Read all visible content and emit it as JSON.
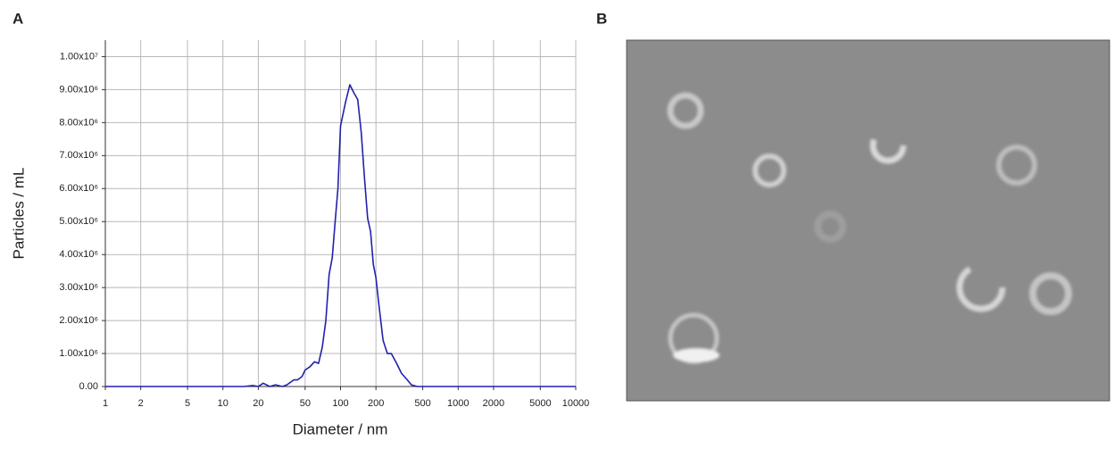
{
  "chart_data": {
    "type": "line",
    "panel_label": "A",
    "x_label": "Diameter / nm",
    "y_label": "Particles / mL",
    "xscale": "log",
    "grid": true,
    "xlim": [
      1,
      10000
    ],
    "xticks": [
      1,
      2,
      5,
      10,
      20,
      50,
      100,
      200,
      500,
      1000,
      2000,
      5000,
      10000
    ],
    "ylim": [
      0,
      10500000
    ],
    "yticks": [
      {
        "value": 0,
        "label": "0.00"
      },
      {
        "value": 1000000,
        "label": "1.00x10⁶"
      },
      {
        "value": 2000000,
        "label": "2.00x10⁶"
      },
      {
        "value": 3000000,
        "label": "3.00x10⁶"
      },
      {
        "value": 4000000,
        "label": "4.00x10⁶"
      },
      {
        "value": 5000000,
        "label": "5.00x10⁶"
      },
      {
        "value": 6000000,
        "label": "6.00x10⁶"
      },
      {
        "value": 7000000,
        "label": "7.00x10⁶"
      },
      {
        "value": 8000000,
        "label": "8.00x10⁶"
      },
      {
        "value": 9000000,
        "label": "9.00x10⁶"
      },
      {
        "value": 10000000,
        "label": "1.00x10⁷"
      }
    ],
    "x": [
      1,
      10,
      15,
      18,
      20,
      22,
      25,
      28,
      32,
      35,
      40,
      43,
      47,
      50,
      55,
      60,
      65,
      70,
      75,
      80,
      85,
      90,
      95,
      100,
      110,
      120,
      130,
      140,
      150,
      160,
      170,
      180,
      190,
      200,
      210,
      230,
      250,
      270,
      300,
      330,
      370,
      400,
      450,
      500,
      1000,
      10000
    ],
    "series": [
      {
        "color": "#2121ad",
        "values": [
          0,
          0,
          0,
          30000,
          0,
          100000,
          0,
          50000,
          0,
          50000,
          200000,
          200000,
          300000,
          500000,
          600000,
          750000,
          700000,
          1200000,
          2000000,
          3400000,
          3900000,
          5000000,
          6000000,
          7900000,
          8600000,
          9150000,
          8900000,
          8700000,
          7700000,
          6300000,
          5100000,
          4700000,
          3700000,
          3300000,
          2600000,
          1400000,
          1000000,
          1000000,
          700000,
          400000,
          200000,
          50000,
          0,
          0,
          0,
          0
        ]
      }
    ]
  },
  "image_panel": {
    "label": "B"
  }
}
